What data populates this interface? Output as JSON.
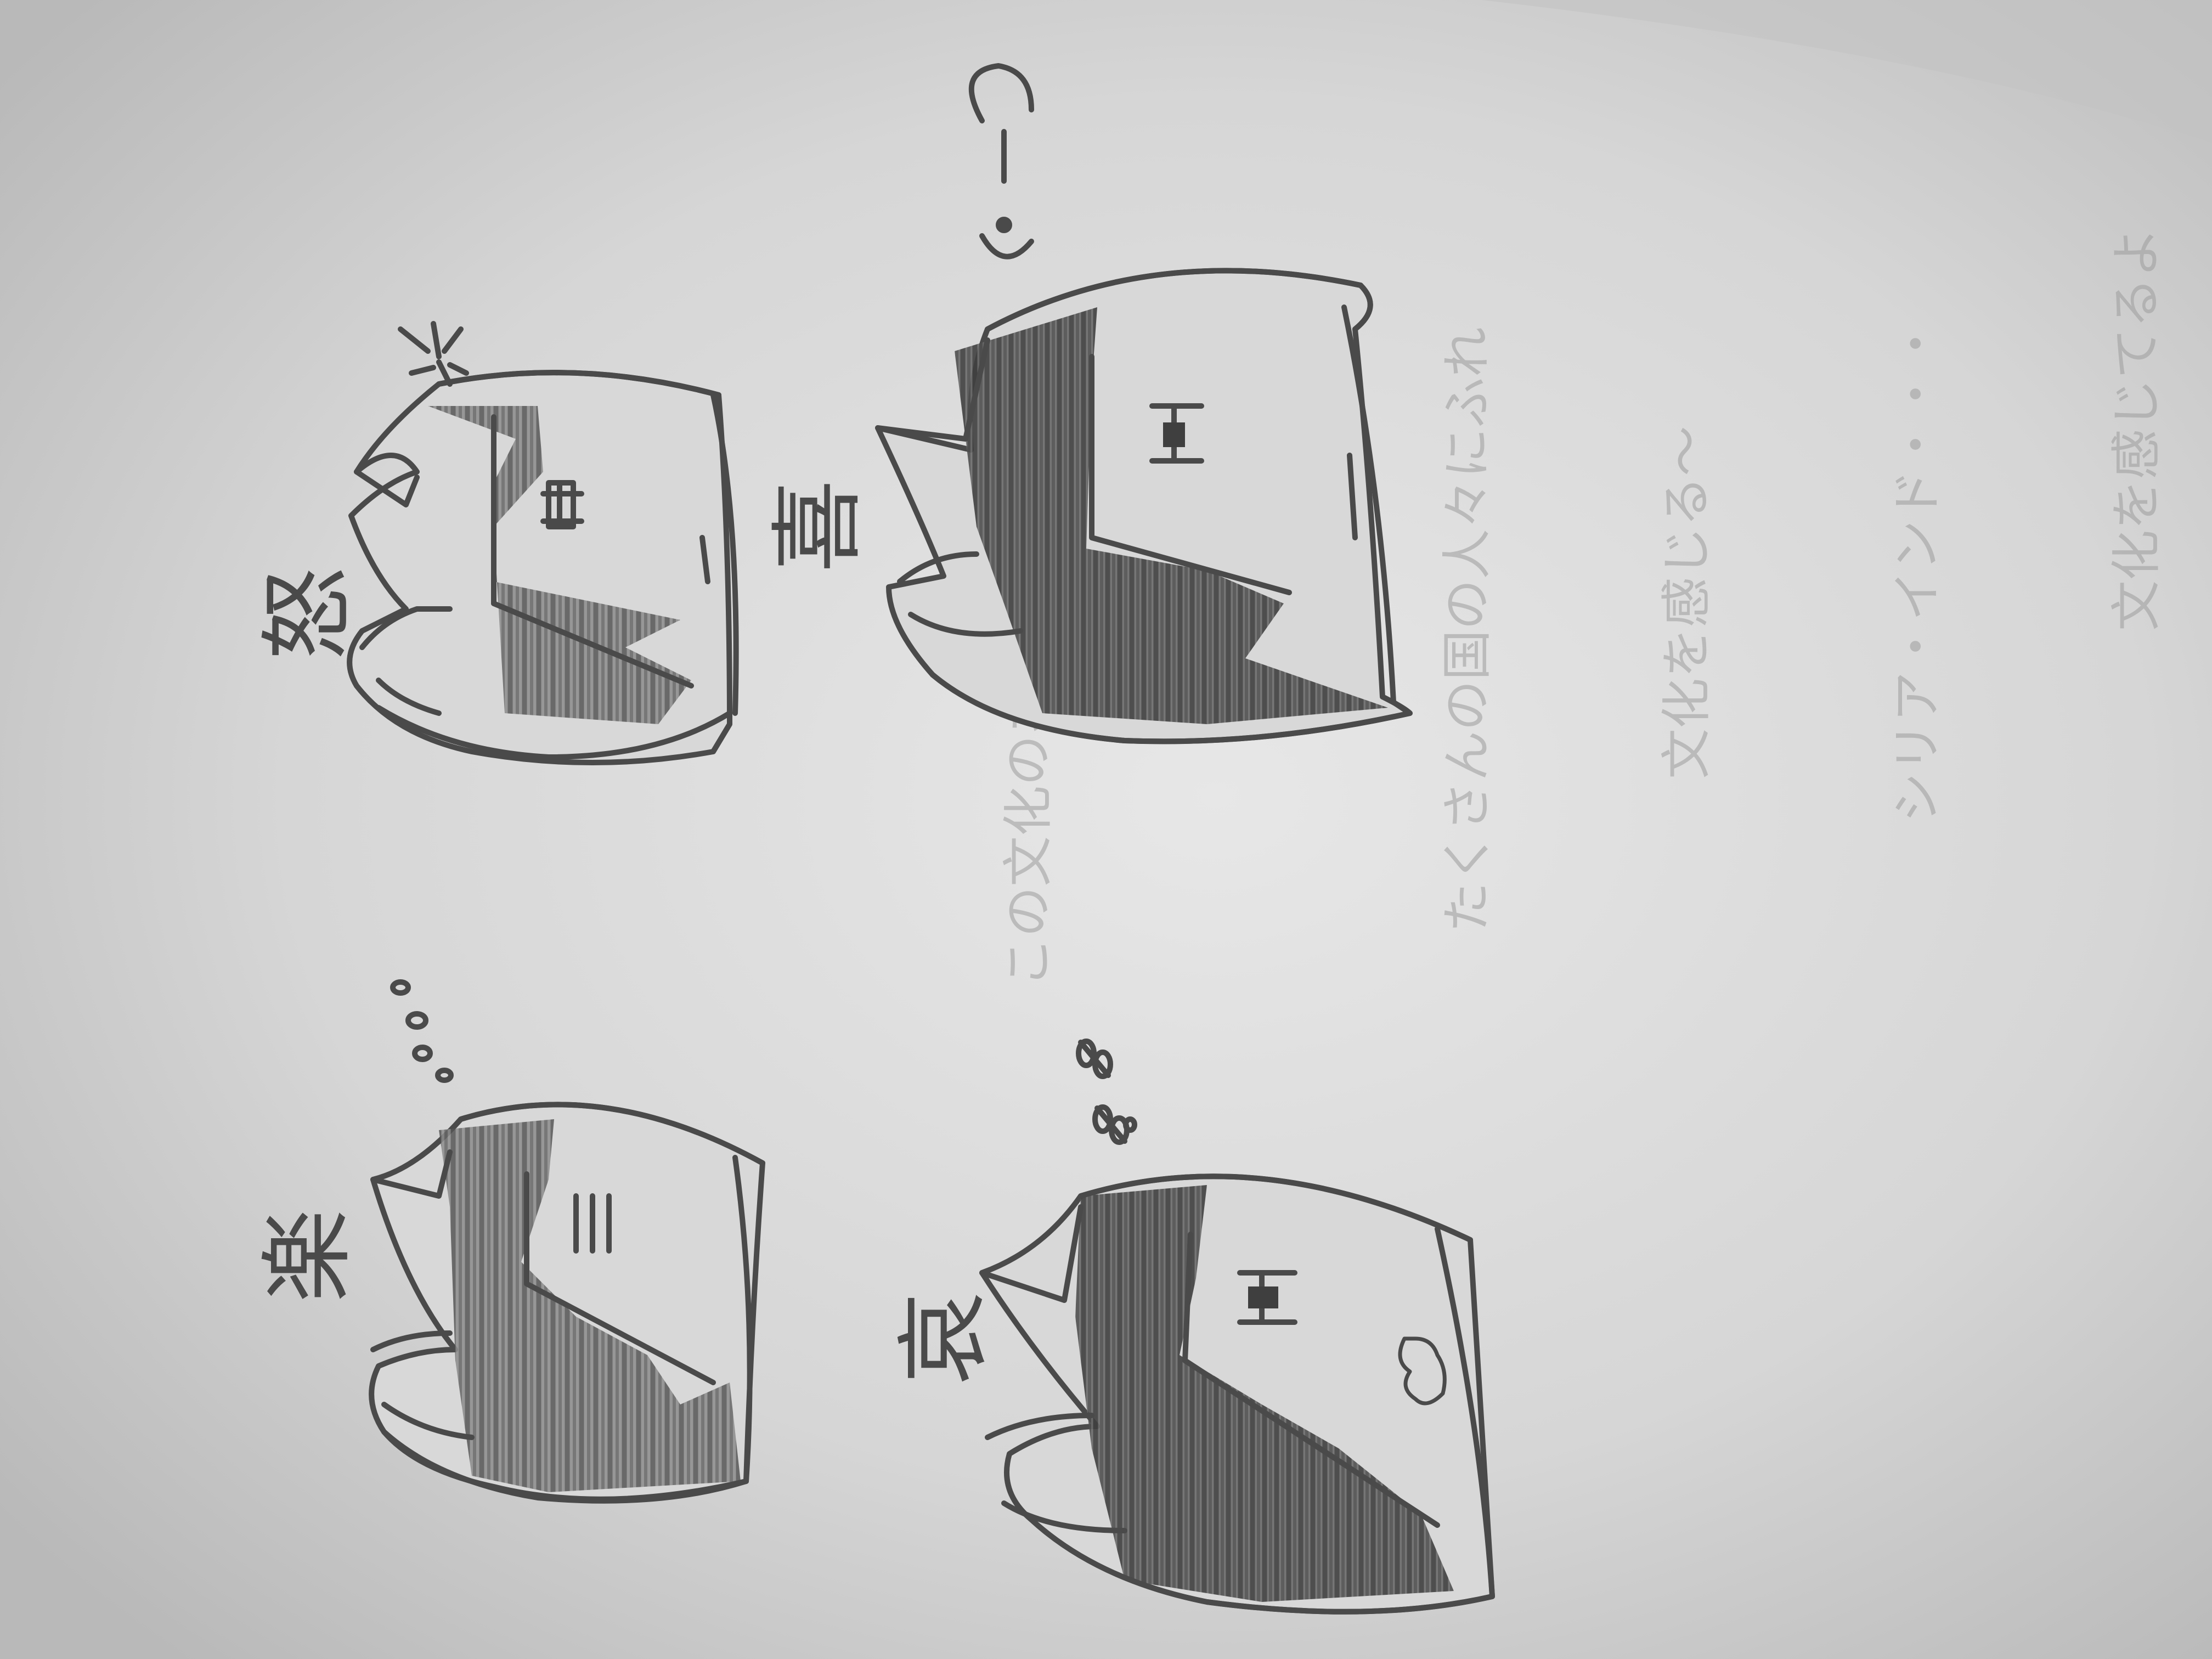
{
  "sketch": {
    "title": "cat-face emotion sketches",
    "drawings": [
      {
        "id": "angry",
        "label": "怒",
        "symbol": "anger-mark"
      },
      {
        "id": "happy",
        "label": "喜",
        "symbol": "surprise-mark"
      },
      {
        "id": "sad",
        "label": "哀",
        "symbol": "tear-bubbles"
      },
      {
        "id": "fun",
        "label": "楽",
        "symbol": "music-notes"
      }
    ],
    "show_through_text": [
      "文化を感じてるよ",
      "シリア・インド・・・",
      "文化を感じる〜",
      "たくさんの国の人々にふれ",
      "この文化のネットワーク"
    ]
  },
  "colors": {
    "paper": "#cfcfcf",
    "paper_light": "#e4e4e4",
    "ink": "#4a4a4a",
    "shade": "#6e6e6e"
  }
}
